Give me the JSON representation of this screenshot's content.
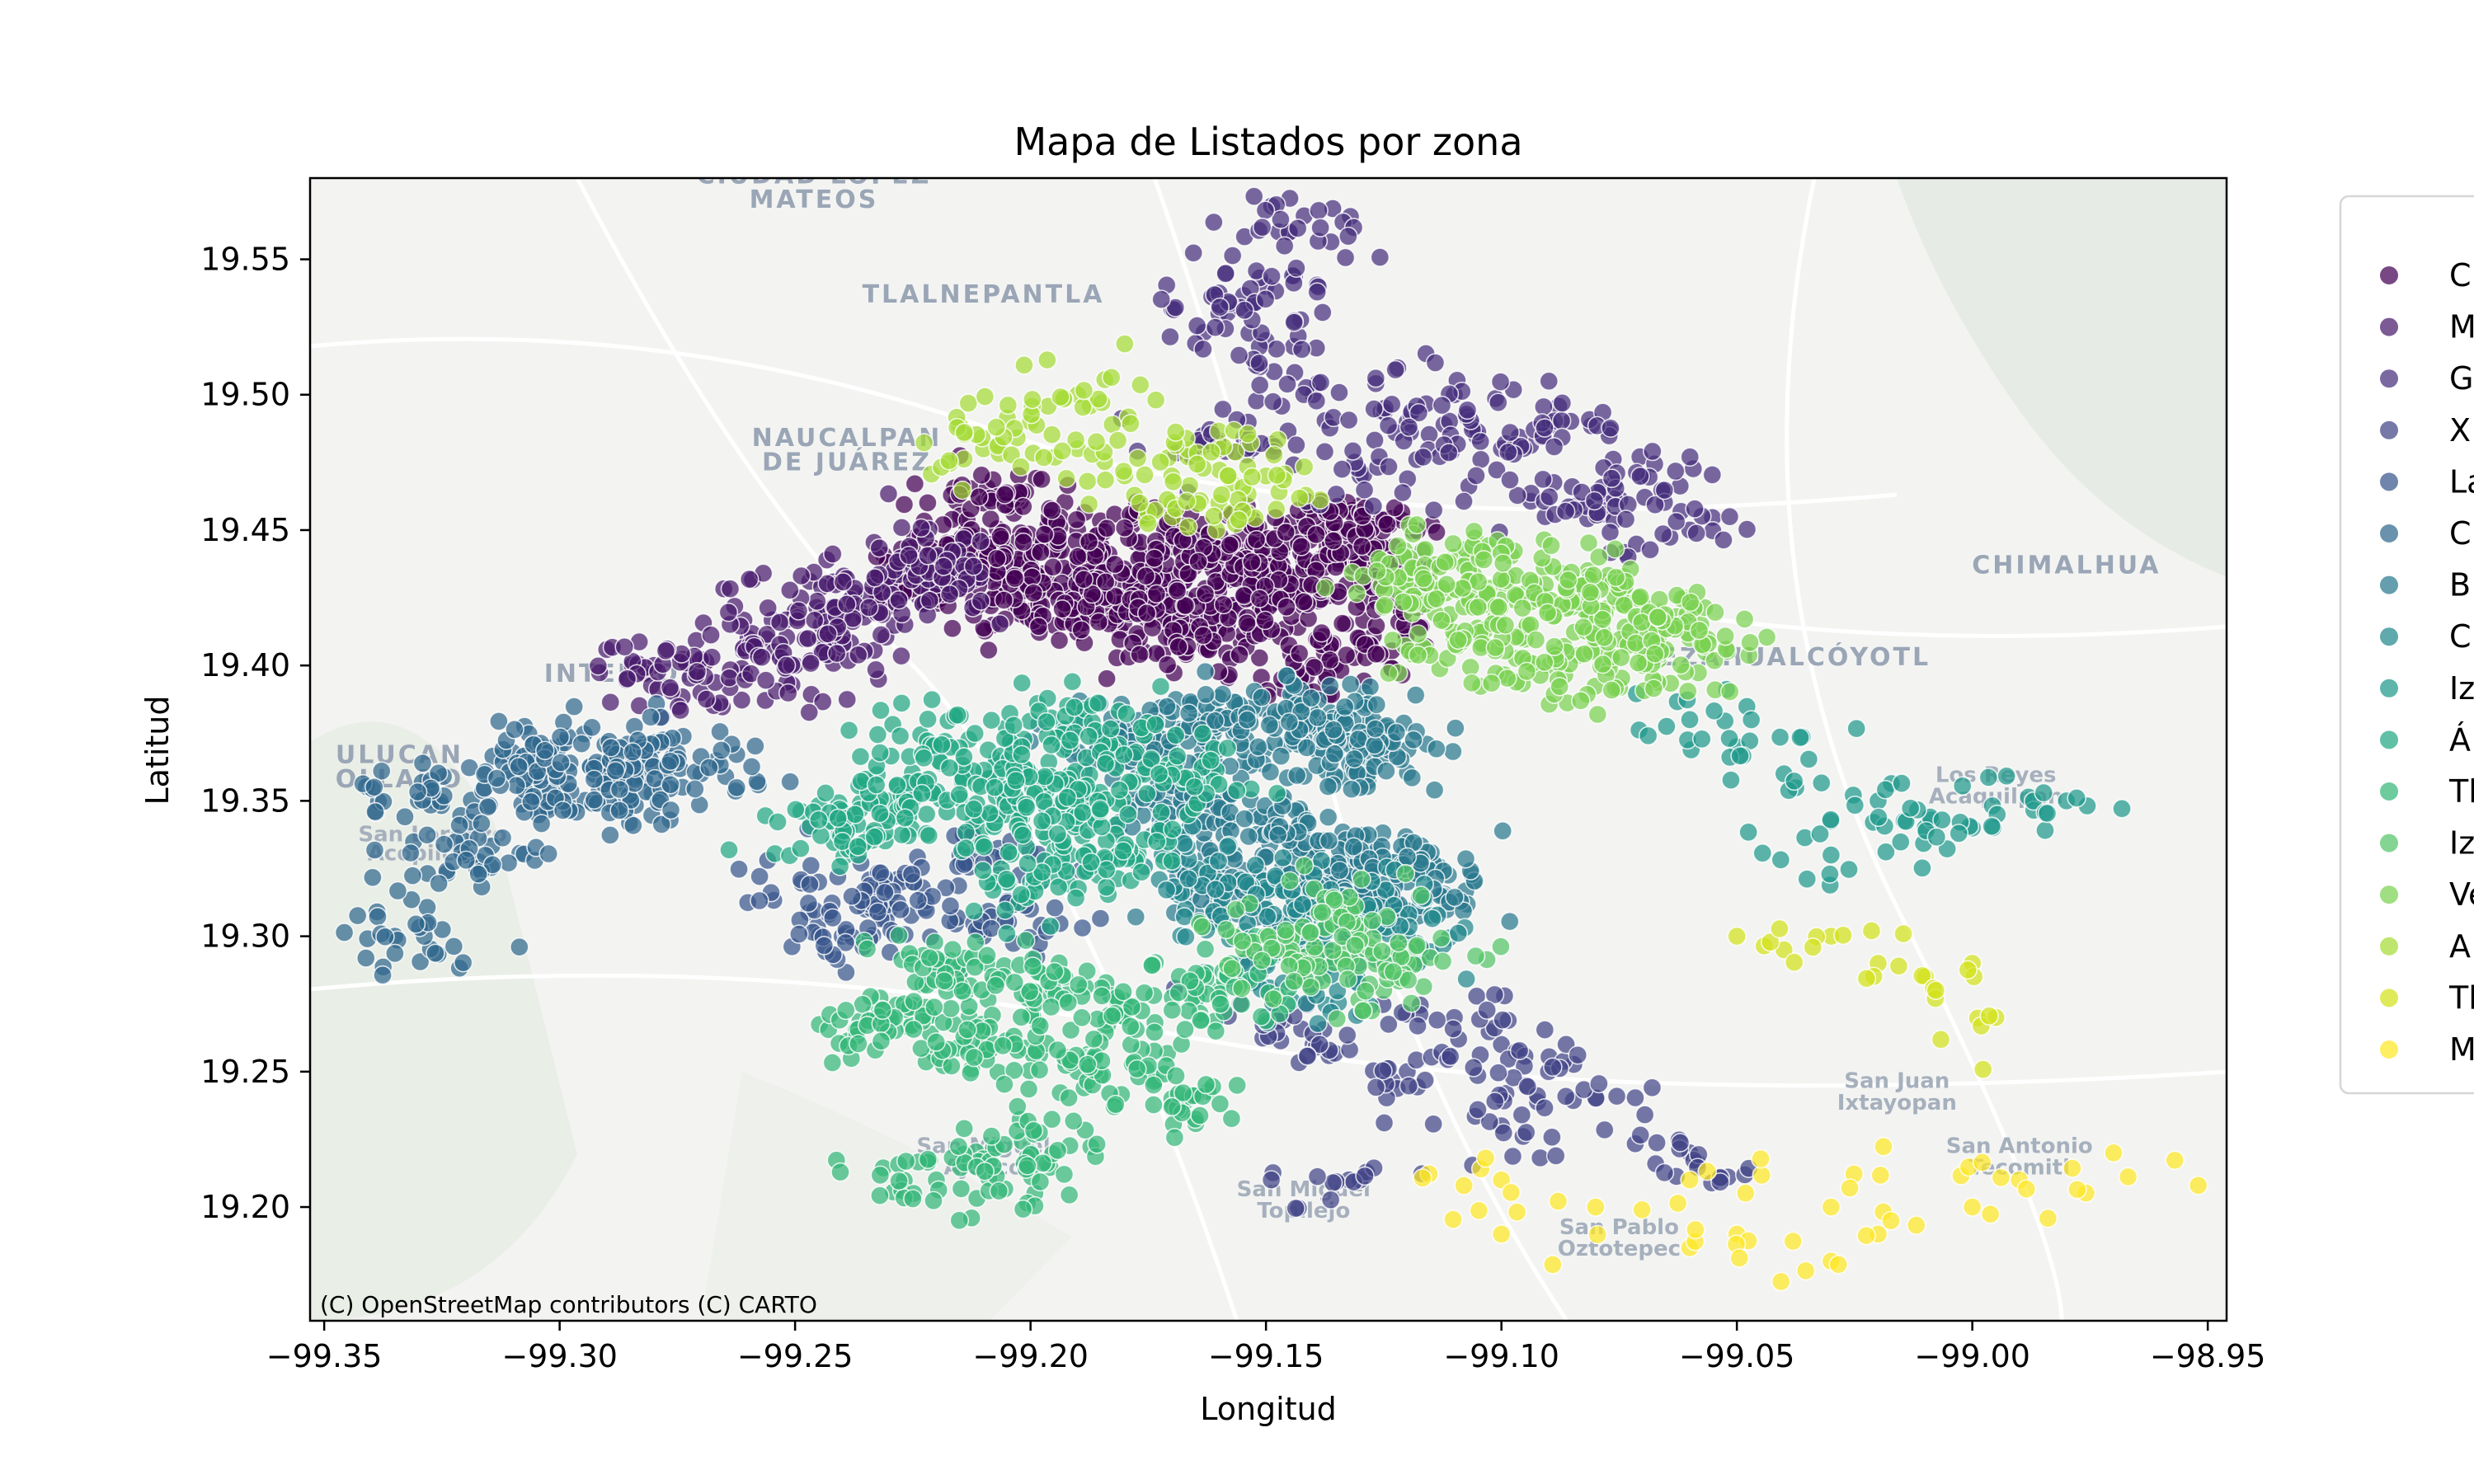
{
  "chart_data": {
    "type": "scatter",
    "title": "Mapa de Listados por zona",
    "xlabel": "Longitud",
    "ylabel": "Latitud",
    "xlim": [
      -99.353,
      -98.946
    ],
    "ylim": [
      19.158,
      19.58
    ],
    "xticks": [
      "−99.35",
      "−99.30",
      "−99.25",
      "−99.20",
      "−99.15",
      "−99.10",
      "−99.05",
      "−99.00",
      "−98.95"
    ],
    "xtick_values": [
      -99.35,
      -99.3,
      -99.25,
      -99.2,
      -99.15,
      -99.1,
      -99.05,
      -99.0,
      -98.95
    ],
    "yticks": [
      "19.20",
      "19.25",
      "19.30",
      "19.35",
      "19.40",
      "19.45",
      "19.50",
      "19.55"
    ],
    "ytick_values": [
      19.2,
      19.25,
      19.3,
      19.35,
      19.4,
      19.45,
      19.5,
      19.55
    ],
    "grid": false,
    "legend_placement": "right, outside axes (cropped)",
    "legend_labels": [
      "C",
      "M",
      "G",
      "X",
      "La",
      "C",
      "B",
      "C",
      "Iz",
      "Á",
      "Tl",
      "Iz",
      "Ve",
      "A",
      "Tl",
      "M"
    ],
    "colors": [
      "#440154",
      "#481a6c",
      "#472f7d",
      "#414487",
      "#39568c",
      "#31688e",
      "#2a788e",
      "#23888e",
      "#1f988b",
      "#22a884",
      "#35b779",
      "#54c568",
      "#7ad151",
      "#a5db36",
      "#d2e21b",
      "#fde725"
    ],
    "series": [
      {
        "name": "C",
        "x": [
          -99.21,
          -99.19,
          -99.17,
          -99.15,
          -99.13,
          -99.2,
          -99.18,
          -99.16,
          -99.14,
          -99.13,
          -99.22,
          -99.2,
          -99.18,
          -99.16,
          -99.14,
          -99.21,
          -99.19,
          -99.17,
          -99.15,
          -99.13
        ],
        "y": [
          19.44,
          19.45,
          19.45,
          19.44,
          19.43,
          19.42,
          19.43,
          19.44,
          19.45,
          19.41,
          19.43,
          19.44,
          19.42,
          19.42,
          19.4,
          19.46,
          19.43,
          19.41,
          19.43,
          19.45
        ],
        "point_count": 900
      },
      {
        "name": "M",
        "x": [
          -99.28,
          -99.26,
          -99.25,
          -99.24,
          -99.23,
          -99.22,
          -99.27,
          -99.25,
          -99.24,
          -99.22
        ],
        "y": [
          19.4,
          19.41,
          19.42,
          19.42,
          19.43,
          19.44,
          19.39,
          19.4,
          19.41,
          19.43
        ],
        "point_count": 260
      },
      {
        "name": "G",
        "x": [
          -99.16,
          -99.14,
          -99.12,
          -99.1,
          -99.08,
          -99.06,
          -99.15,
          -99.13,
          -99.11,
          -99.09,
          -99.07,
          -99.145,
          -99.16,
          -99.15
        ],
        "y": [
          19.48,
          19.5,
          19.49,
          19.48,
          19.46,
          19.45,
          19.52,
          19.47,
          19.5,
          19.49,
          19.47,
          19.56,
          19.53,
          19.54
        ],
        "point_count": 330
      },
      {
        "name": "X",
        "x": [
          -99.15,
          -99.14,
          -99.12,
          -99.1,
          -99.09,
          -99.08,
          -99.13,
          -99.11,
          -99.1,
          -99.06
        ],
        "y": [
          19.27,
          19.26,
          19.25,
          19.26,
          19.25,
          19.24,
          19.21,
          19.27,
          19.23,
          19.22
        ],
        "point_count": 160
      },
      {
        "name": "La",
        "x": [
          -99.245,
          -99.235,
          -99.225,
          -99.215,
          -99.24,
          -99.23,
          -99.21,
          -99.2
        ],
        "y": [
          19.32,
          19.31,
          19.32,
          19.33,
          19.3,
          19.31,
          19.3,
          19.31
        ],
        "point_count": 150
      },
      {
        "name": "C",
        "x": [
          -99.33,
          -99.31,
          -99.3,
          -99.29,
          -99.28,
          -99.27,
          -99.32,
          -99.3,
          -99.285,
          -99.335
        ],
        "y": [
          19.35,
          19.36,
          19.37,
          19.36,
          19.37,
          19.36,
          19.33,
          19.35,
          19.35,
          19.3
        ],
        "point_count": 300
      },
      {
        "name": "B",
        "x": [
          -99.18,
          -99.16,
          -99.14,
          -99.13,
          -99.17,
          -99.15,
          -99.13,
          -99.16,
          -99.14,
          -99.12
        ],
        "y": [
          19.37,
          19.38,
          19.38,
          19.37,
          19.35,
          19.34,
          19.33,
          19.32,
          19.31,
          19.32
        ],
        "point_count": 700
      },
      {
        "name": "C",
        "x": [
          -99.17,
          -99.16,
          -99.15,
          -99.14,
          -99.13,
          -99.12,
          -99.15,
          -99.14
        ],
        "y": [
          19.33,
          19.32,
          19.31,
          19.3,
          19.31,
          19.3,
          19.29,
          19.28
        ],
        "point_count": 200
      },
      {
        "name": "Iz",
        "x": [
          -99.06,
          -99.05,
          -99.04,
          -99.02,
          -99.0,
          -98.98,
          -99.03,
          -99.01
        ],
        "y": [
          19.38,
          19.37,
          19.36,
          19.35,
          19.34,
          19.35,
          19.33,
          19.34
        ],
        "point_count": 90
      },
      {
        "name": "Á",
        "x": [
          -99.22,
          -99.2,
          -99.19,
          -99.17,
          -99.24,
          -99.21,
          -99.18,
          -99.23,
          -99.19,
          -99.2
        ],
        "y": [
          19.37,
          19.36,
          19.35,
          19.36,
          19.34,
          19.34,
          19.33,
          19.35,
          19.38,
          19.32
        ],
        "point_count": 450
      },
      {
        "name": "Tl",
        "x": [
          -99.22,
          -99.2,
          -99.18,
          -99.16,
          -99.23,
          -99.21,
          -99.19,
          -99.17,
          -99.2,
          -99.22
        ],
        "y": [
          19.29,
          19.28,
          19.27,
          19.28,
          19.27,
          19.26,
          19.25,
          19.24,
          19.22,
          19.21
        ],
        "point_count": 420
      },
      {
        "name": "Iz",
        "x": [
          -99.15,
          -99.14,
          -99.13,
          -99.12,
          -99.135,
          -99.125
        ],
        "y": [
          19.3,
          19.29,
          19.3,
          19.29,
          19.31,
          19.28
        ],
        "point_count": 120
      },
      {
        "name": "Ve",
        "x": [
          -99.12,
          -99.11,
          -99.1,
          -99.09,
          -99.08,
          -99.07,
          -99.06,
          -99.11,
          -99.09,
          -99.07
        ],
        "y": [
          19.43,
          19.44,
          19.43,
          19.42,
          19.43,
          19.42,
          19.41,
          19.41,
          19.4,
          19.4
        ],
        "point_count": 400
      },
      {
        "name": "A",
        "x": [
          -99.2,
          -99.19,
          -99.18,
          -99.17,
          -99.16,
          -99.15,
          -99.21,
          -99.19,
          -99.17,
          -99.16
        ],
        "y": [
          19.49,
          19.48,
          19.47,
          19.47,
          19.46,
          19.47,
          19.48,
          19.5,
          19.46,
          19.48
        ],
        "point_count": 140
      },
      {
        "name": "Tl",
        "x": [
          -99.05,
          -99.04,
          -99.03,
          -99.02,
          -99.01,
          -99.0,
          -98.995
        ],
        "y": [
          19.3,
          19.295,
          19.3,
          19.29,
          19.285,
          19.29,
          19.27
        ],
        "point_count": 30
      },
      {
        "name": "M",
        "x": [
          -99.1,
          -99.08,
          -99.06,
          -99.05,
          -99.03,
          -99.02,
          -99.0,
          -98.99,
          -98.97,
          -99.06,
          -99.1,
          -99.03
        ],
        "y": [
          19.21,
          19.2,
          19.21,
          19.19,
          19.18,
          19.19,
          19.2,
          19.21,
          19.22,
          19.185,
          19.19,
          19.2
        ],
        "point_count": 60
      }
    ],
    "basemap_labels": [
      {
        "text": "CIUDAD LÓPEZ",
        "x": -99.246,
        "y": 19.578
      },
      {
        "text": "MATEOS",
        "x": -99.246,
        "y": 19.569
      },
      {
        "text": "TLALNEPANTLA",
        "x": -99.21,
        "y": 19.534
      },
      {
        "text": "NAUCALPAN",
        "x": -99.239,
        "y": 19.481
      },
      {
        "text": "DE JUÁREZ",
        "x": -99.239,
        "y": 19.472
      },
      {
        "text": "INTERLOM",
        "x": -99.286,
        "y": 19.394
      },
      {
        "text": "ULUCAN",
        "x": -99.334,
        "y": 19.364
      },
      {
        "text": "OLLADO",
        "x": -99.334,
        "y": 19.355
      },
      {
        "text": "San Lorenzo",
        "x": -99.327,
        "y": 19.335
      },
      {
        "text": "Acopilco",
        "x": -99.33,
        "y": 19.328
      },
      {
        "text": "CHIMALHUA",
        "x": -98.98,
        "y": 19.434
      },
      {
        "text": "NEZAHUALCÓYOTL",
        "x": -99.04,
        "y": 19.4
      },
      {
        "text": "Los Reyes",
        "x": -98.995,
        "y": 19.357
      },
      {
        "text": "Acaquilpan",
        "x": -98.995,
        "y": 19.349
      },
      {
        "text": "San Juan",
        "x": -99.016,
        "y": 19.244
      },
      {
        "text": "Ixtayopan",
        "x": -99.016,
        "y": 19.236
      },
      {
        "text": "San Antonio",
        "x": -98.99,
        "y": 19.22
      },
      {
        "text": "Tecomitl",
        "x": -98.99,
        "y": 19.212
      },
      {
        "text": "San Miguel",
        "x": -99.21,
        "y": 19.22
      },
      {
        "text": "Ajusco",
        "x": -99.21,
        "y": 19.212
      },
      {
        "text": "San Miguel",
        "x": -99.142,
        "y": 19.204
      },
      {
        "text": "Topilejo",
        "x": -99.142,
        "y": 19.196
      },
      {
        "text": "San Pablo",
        "x": -99.075,
        "y": 19.19
      },
      {
        "text": "Oztotepec",
        "x": -99.075,
        "y": 19.182
      }
    ],
    "attribution": "(C) OpenStreetMap contributors (C) CARTO"
  }
}
